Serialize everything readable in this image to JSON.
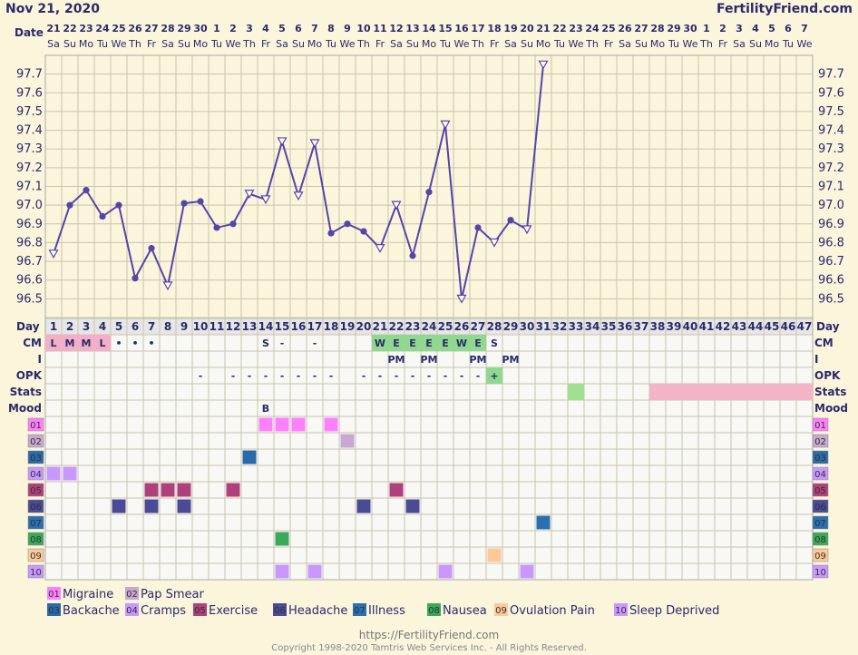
{
  "header": {
    "date": "Nov 21, 2020",
    "site": "FertilityFriend.com",
    "date_row_label": "Date",
    "day_row_label": "Day"
  },
  "dates": [
    "21",
    "22",
    "23",
    "24",
    "25",
    "26",
    "27",
    "28",
    "29",
    "30",
    "1",
    "2",
    "3",
    "4",
    "5",
    "6",
    "7",
    "8",
    "9",
    "10",
    "11",
    "12",
    "13",
    "14",
    "15",
    "16",
    "17",
    "18",
    "19",
    "20",
    "21",
    "22",
    "23",
    "24",
    "25",
    "26",
    "27",
    "28",
    "29",
    "30",
    "1",
    "2",
    "3",
    "4",
    "5",
    "6",
    "7"
  ],
  "weekdays": [
    "Sa",
    "Su",
    "Mo",
    "Tu",
    "We",
    "Th",
    "Fr",
    "Sa",
    "Su",
    "Mo",
    "Tu",
    "We",
    "Th",
    "Fr",
    "Sa",
    "Su",
    "Mo",
    "Tu",
    "We",
    "Th",
    "Fr",
    "Sa",
    "Su",
    "Mo",
    "Tu",
    "We",
    "Th",
    "Fr",
    "Sa",
    "Su",
    "Mo",
    "Tu",
    "We",
    "Th",
    "Fr",
    "Sa",
    "Su",
    "Mo",
    "Tu",
    "We",
    "Th",
    "Fr",
    "Sa",
    "Su",
    "Mo",
    "Tu",
    "We"
  ],
  "chart_data": {
    "type": "line",
    "ylim": [
      96.4,
      97.8
    ],
    "y_ticks": [
      "97.7",
      "97.6",
      "97.5",
      "97.4",
      "97.3",
      "97.2",
      "97.1",
      "97.0",
      "96.9",
      "96.8",
      "96.7",
      "96.6",
      "96.5"
    ],
    "series": [
      {
        "values": [
          96.74,
          97.0,
          97.08,
          96.94,
          97.0,
          96.61,
          96.77,
          96.57,
          97.01,
          97.02,
          96.88,
          96.9,
          97.06,
          97.03,
          97.34,
          97.05,
          97.33,
          96.85,
          96.9,
          96.86,
          96.77,
          97.0,
          96.73,
          97.07,
          97.43,
          96.5,
          96.88,
          96.8,
          96.92,
          96.87,
          97.75
        ],
        "open_markers": [
          1,
          8,
          13,
          14,
          15,
          16,
          17,
          21,
          22,
          25,
          26,
          28,
          30,
          31
        ],
        "color": "#5544aa"
      }
    ]
  },
  "rows": {
    "labels": [
      "CM",
      "I",
      "OPK",
      "Stats",
      "Mood"
    ],
    "cm": {
      "1": "L",
      "2": "M",
      "3": "M",
      "4": "L",
      "5": "•",
      "6": "•",
      "7": "•",
      "14": "S",
      "15": "-",
      "17": "-",
      "21": "W",
      "22": "E",
      "23": "E",
      "24": "E",
      "25": "E",
      "26": "W",
      "27": "E",
      "28": "S"
    },
    "cm_fertile_days": [
      21,
      22,
      23,
      24,
      25,
      26,
      27
    ],
    "cm_period_days": [
      1,
      2,
      3,
      4
    ],
    "intercourse": {
      "22": "PM",
      "24": "PM",
      "27": "PM",
      "29": "PM"
    },
    "opk": {
      "10": "-",
      "12": "-",
      "13": "-",
      "14": "-",
      "15": "-",
      "16": "-",
      "17": "-",
      "18": "-",
      "20": "-",
      "21": "-",
      "22": "-",
      "23": "-",
      "24": "-",
      "25": "-",
      "26": "-",
      "27": "-",
      "28": "+"
    },
    "opk_positive_day": 28,
    "stats_green_days": [
      33
    ],
    "stats_pink_range": [
      38,
      47
    ],
    "mood": {
      "14": "B"
    }
  },
  "symptoms": [
    {
      "code": "01",
      "name": "Migraine",
      "color": "#ff80ff",
      "days": [
        14,
        15,
        16,
        18
      ]
    },
    {
      "code": "02",
      "name": "Pap Smear",
      "color": "#c8a8d0",
      "days": [
        19
      ]
    },
    {
      "code": "03",
      "name": "Backache",
      "color": "#2a6aaa",
      "days": [
        13
      ]
    },
    {
      "code": "04",
      "name": "Cramps",
      "color": "#c898ff",
      "days": [
        1,
        2
      ]
    },
    {
      "code": "05",
      "name": "Exercise",
      "color": "#b0407a",
      "days": [
        7,
        8,
        9,
        12,
        22
      ]
    },
    {
      "code": "06",
      "name": "Headache",
      "color": "#4a4a96",
      "days": [
        5,
        7,
        9,
        20,
        23
      ]
    },
    {
      "code": "07",
      "name": "Illness",
      "color": "#2a70b0",
      "days": [
        31
      ]
    },
    {
      "code": "08",
      "name": "Nausea",
      "color": "#3aaa5a",
      "days": [
        15
      ]
    },
    {
      "code": "09",
      "name": "Ovulation Pain",
      "color": "#ffc898",
      "days": [
        28
      ]
    },
    {
      "code": "10",
      "name": "Sleep Deprived",
      "color": "#c898ff",
      "days": [
        15,
        17,
        25,
        30
      ]
    }
  ],
  "colors": {
    "grid": "#c8c4b0",
    "line": "#5544aa",
    "period": "#f2b0c8",
    "fertile": "#90d890",
    "stats_pink": "#f4b4c8",
    "stats_green": "#a0e090"
  },
  "footer": {
    "url": "https://FertilityFriend.com",
    "copyright": "Copyright 1998-2020 Tamtris Web Services Inc. - All Rights Reserved."
  }
}
